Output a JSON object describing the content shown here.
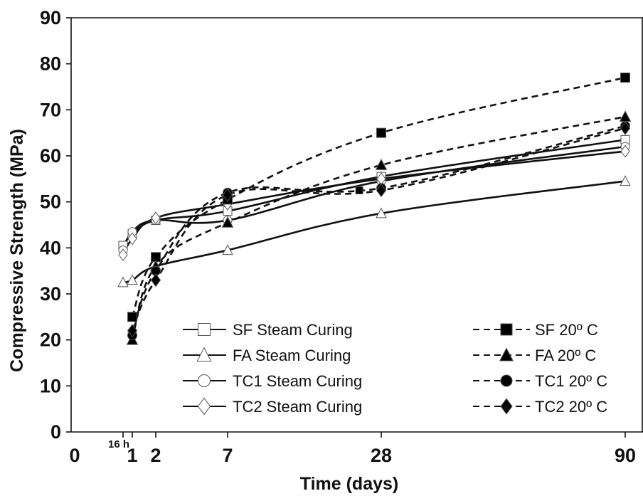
{
  "chart_data": {
    "type": "line",
    "xlabel": "Time (days)",
    "ylabel": "Compressive Strength (MPa)",
    "ylim": [
      0,
      90
    ],
    "yticks": [
      "0",
      "10",
      "20",
      "30",
      "40",
      "50",
      "60",
      "70",
      "80",
      "90"
    ],
    "x_scale": "categorical-ordered",
    "xticks": [
      {
        "x": 0,
        "label": "0"
      },
      {
        "x": 0.67,
        "label": "16 h"
      },
      {
        "x": 1,
        "label": "1"
      },
      {
        "x": 2,
        "label": "2"
      },
      {
        "x": 7,
        "label": "7"
      },
      {
        "x": 28,
        "label": "28"
      },
      {
        "x": 90,
        "label": "90"
      }
    ],
    "grid": false,
    "series": [
      {
        "name": "SF   Steam Curing",
        "curing": "steam",
        "marker": "square",
        "filled": false,
        "points": [
          [
            0.67,
            40.5
          ],
          [
            1,
            43
          ],
          [
            2,
            46
          ],
          [
            7,
            48
          ],
          [
            28,
            55.5
          ],
          [
            90,
            63.5
          ]
        ]
      },
      {
        "name": "FA   Steam Curing",
        "curing": "steam",
        "marker": "triangle",
        "filled": false,
        "points": [
          [
            0.67,
            32.5
          ],
          [
            1,
            33
          ],
          [
            2,
            36
          ],
          [
            7,
            39.5
          ],
          [
            28,
            47.5
          ],
          [
            90,
            54.5
          ]
        ]
      },
      {
        "name": "TC1 Steam Curing",
        "curing": "steam",
        "marker": "circle",
        "filled": false,
        "points": [
          [
            0.67,
            39.5
          ],
          [
            1,
            43.5
          ],
          [
            2,
            46
          ],
          [
            7,
            46
          ],
          [
            28,
            54.5
          ],
          [
            90,
            62
          ]
        ]
      },
      {
        "name": "TC2 Steam Curing",
        "curing": "steam",
        "marker": "diamond",
        "filled": false,
        "points": [
          [
            0.67,
            38.5
          ],
          [
            1,
            42
          ],
          [
            2,
            46.5
          ],
          [
            7,
            49.5
          ],
          [
            28,
            55
          ],
          [
            90,
            61
          ]
        ]
      },
      {
        "name": "SF   20º C",
        "curing": "20C",
        "marker": "square",
        "filled": true,
        "points": [
          [
            1,
            25
          ],
          [
            2,
            38
          ],
          [
            7,
            50.5
          ],
          [
            28,
            65
          ],
          [
            90,
            77
          ]
        ]
      },
      {
        "name": "FA   20º C",
        "curing": "20C",
        "marker": "triangle",
        "filled": true,
        "points": [
          [
            1,
            20
          ],
          [
            2,
            36
          ],
          [
            7,
            45.5
          ],
          [
            28,
            58
          ],
          [
            90,
            68.5
          ]
        ]
      },
      {
        "name": "TC1 20º C",
        "curing": "20C",
        "marker": "circle",
        "filled": true,
        "points": [
          [
            1,
            21
          ],
          [
            2,
            35
          ],
          [
            7,
            52
          ],
          [
            28,
            53
          ],
          [
            90,
            66.5
          ]
        ]
      },
      {
        "name": "TC2 20º C",
        "curing": "20C",
        "marker": "diamond",
        "filled": true,
        "points": [
          [
            1,
            22
          ],
          [
            2,
            33
          ],
          [
            7,
            51.5
          ],
          [
            28,
            52.5
          ],
          [
            90,
            66
          ]
        ]
      }
    ],
    "legend": {
      "position": "bottom-inside",
      "columns": 2
    },
    "extra_points": [
      {
        "series": "SF   20º C",
        "x": 25,
        "y": 52.5
      }
    ]
  }
}
